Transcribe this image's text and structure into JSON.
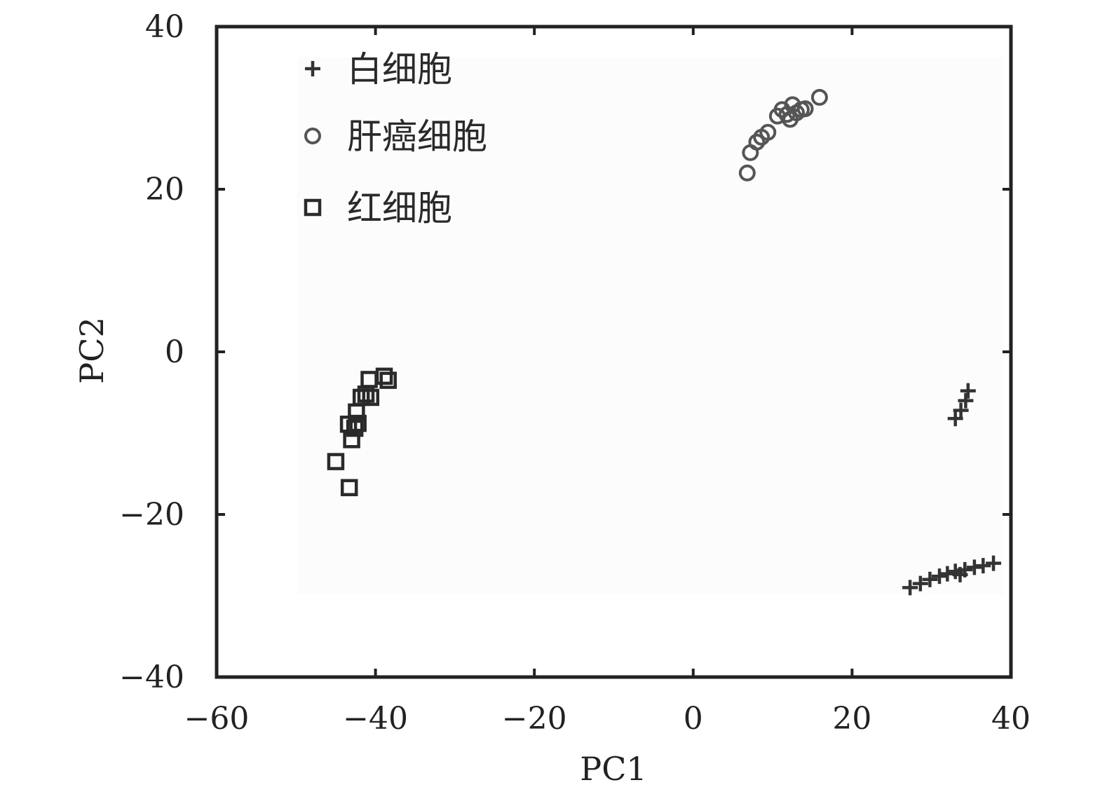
{
  "chart_data": {
    "type": "scatter",
    "title": "",
    "xlabel": "PC1",
    "ylabel": "PC2",
    "xlim": [
      -60,
      40
    ],
    "ylim": [
      -40,
      40
    ],
    "xticks": [
      -60,
      -40,
      -20,
      0,
      20,
      40
    ],
    "yticks": [
      -40,
      -20,
      0,
      20,
      40
    ],
    "xtick_labels": [
      "−60",
      "−40",
      "−20",
      "0",
      "20",
      "40"
    ],
    "ytick_labels": [
      "−40",
      "−20",
      "0",
      "20",
      "40"
    ],
    "grid": false,
    "legend_position": "top-left",
    "series": [
      {
        "name": "白细胞",
        "marker": "plus",
        "color": "#333333",
        "points": [
          [
            33.0,
            -8.2
          ],
          [
            33.7,
            -7.2
          ],
          [
            34.3,
            -6.0
          ],
          [
            34.6,
            -4.8
          ],
          [
            27.3,
            -29.0
          ],
          [
            28.6,
            -28.5
          ],
          [
            29.8,
            -28.0
          ],
          [
            31.0,
            -27.6
          ],
          [
            32.0,
            -27.3
          ],
          [
            33.0,
            -27.0
          ],
          [
            33.6,
            -27.4
          ],
          [
            34.2,
            -26.8
          ],
          [
            35.4,
            -26.5
          ],
          [
            36.5,
            -26.3
          ],
          [
            37.8,
            -26.0
          ]
        ]
      },
      {
        "name": "肝癌细胞",
        "marker": "circle",
        "color": "#555555",
        "points": [
          [
            6.8,
            22.0
          ],
          [
            7.2,
            24.5
          ],
          [
            8.0,
            25.8
          ],
          [
            8.6,
            26.4
          ],
          [
            9.4,
            27.0
          ],
          [
            10.6,
            29.0
          ],
          [
            11.2,
            29.8
          ],
          [
            11.8,
            29.2
          ],
          [
            12.2,
            28.6
          ],
          [
            12.5,
            30.4
          ],
          [
            13.0,
            29.4
          ],
          [
            13.6,
            29.8
          ],
          [
            14.1,
            29.9
          ],
          [
            15.9,
            31.3
          ]
        ]
      },
      {
        "name": "红细胞",
        "marker": "square",
        "color": "#2a2a2a",
        "points": [
          [
            -45.0,
            -13.5
          ],
          [
            -43.3,
            -16.7
          ],
          [
            -43.4,
            -8.9
          ],
          [
            -43.0,
            -10.8
          ],
          [
            -42.6,
            -9.4
          ],
          [
            -42.4,
            -7.4
          ],
          [
            -42.2,
            -8.8
          ],
          [
            -41.8,
            -5.6
          ],
          [
            -41.2,
            -5.2
          ],
          [
            -40.6,
            -5.6
          ],
          [
            -40.8,
            -3.4
          ],
          [
            -38.9,
            -3.0
          ],
          [
            -38.4,
            -3.5
          ]
        ]
      }
    ]
  }
}
